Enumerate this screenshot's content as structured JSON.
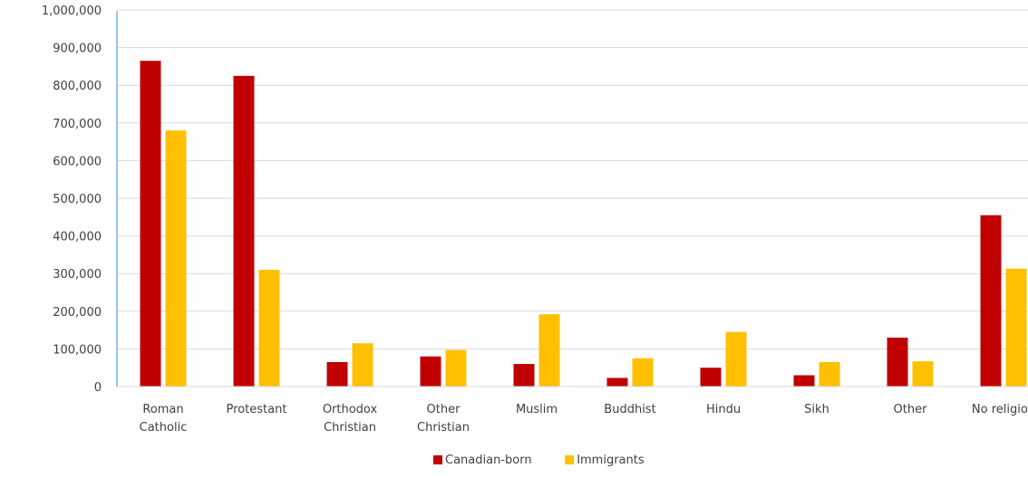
{
  "chart_data": {
    "type": "bar",
    "title": "",
    "xlabel": "",
    "ylabel": "",
    "ylim": [
      0,
      1000000
    ],
    "yticks": [
      0,
      100000,
      200000,
      300000,
      400000,
      500000,
      600000,
      700000,
      800000,
      900000,
      1000000
    ],
    "ytick_labels": [
      "0",
      "100,000",
      "200,000",
      "300,000",
      "400,000",
      "500,000",
      "600,000",
      "700,000",
      "800,000",
      "900,000",
      "1,000,000"
    ],
    "categories": [
      [
        "Roman",
        "Catholic"
      ],
      [
        "Protestant"
      ],
      [
        "Orthodox",
        "Christian"
      ],
      [
        "Other",
        "Christian"
      ],
      [
        "Muslim"
      ],
      [
        "Buddhist"
      ],
      [
        "Hindu"
      ],
      [
        "Sikh"
      ],
      [
        "Other"
      ],
      [
        "No religion"
      ]
    ],
    "series": [
      {
        "name": "Canadian-born",
        "color": "#c00000",
        "values": [
          865000,
          825000,
          65000,
          80000,
          60000,
          23000,
          50000,
          30000,
          130000,
          455000
        ]
      },
      {
        "name": "Immigrants",
        "color": "#ffc000",
        "values": [
          680000,
          310000,
          115000,
          97000,
          192000,
          75000,
          145000,
          65000,
          67000,
          313000
        ]
      }
    ],
    "grid": true,
    "legend": "bottom-center",
    "axis_color": "#9dc3e6",
    "grid_color": "#d9d9d9"
  }
}
